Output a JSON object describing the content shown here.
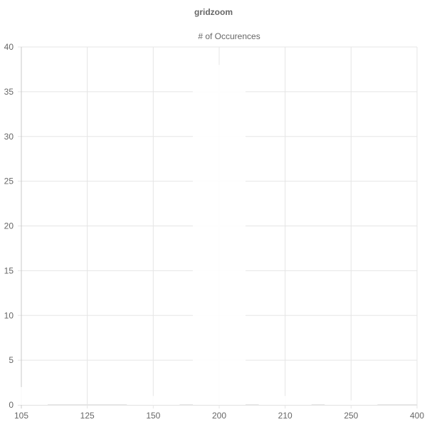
{
  "page": {
    "title": "gridzoom"
  },
  "chart_data": {
    "type": "bar",
    "title": "gridzoom",
    "categories": [
      "105",
      "125",
      "150",
      "200",
      "210",
      "250",
      "400"
    ],
    "series": [
      {
        "name": "# of Occurences",
        "values": [
          2,
          0,
          1,
          38,
          1,
          0.5,
          0
        ]
      }
    ],
    "ylim": [
      0,
      40
    ],
    "yticks": [
      0,
      5,
      10,
      15,
      20,
      25,
      30,
      35,
      40
    ],
    "xlabel": "",
    "ylabel": "",
    "grid": true,
    "legend_position": "top",
    "colors": {
      "grid": "#e5e5e5",
      "axis": "#c8c8c8",
      "text": "#666666",
      "bar": "#ffffff"
    }
  }
}
